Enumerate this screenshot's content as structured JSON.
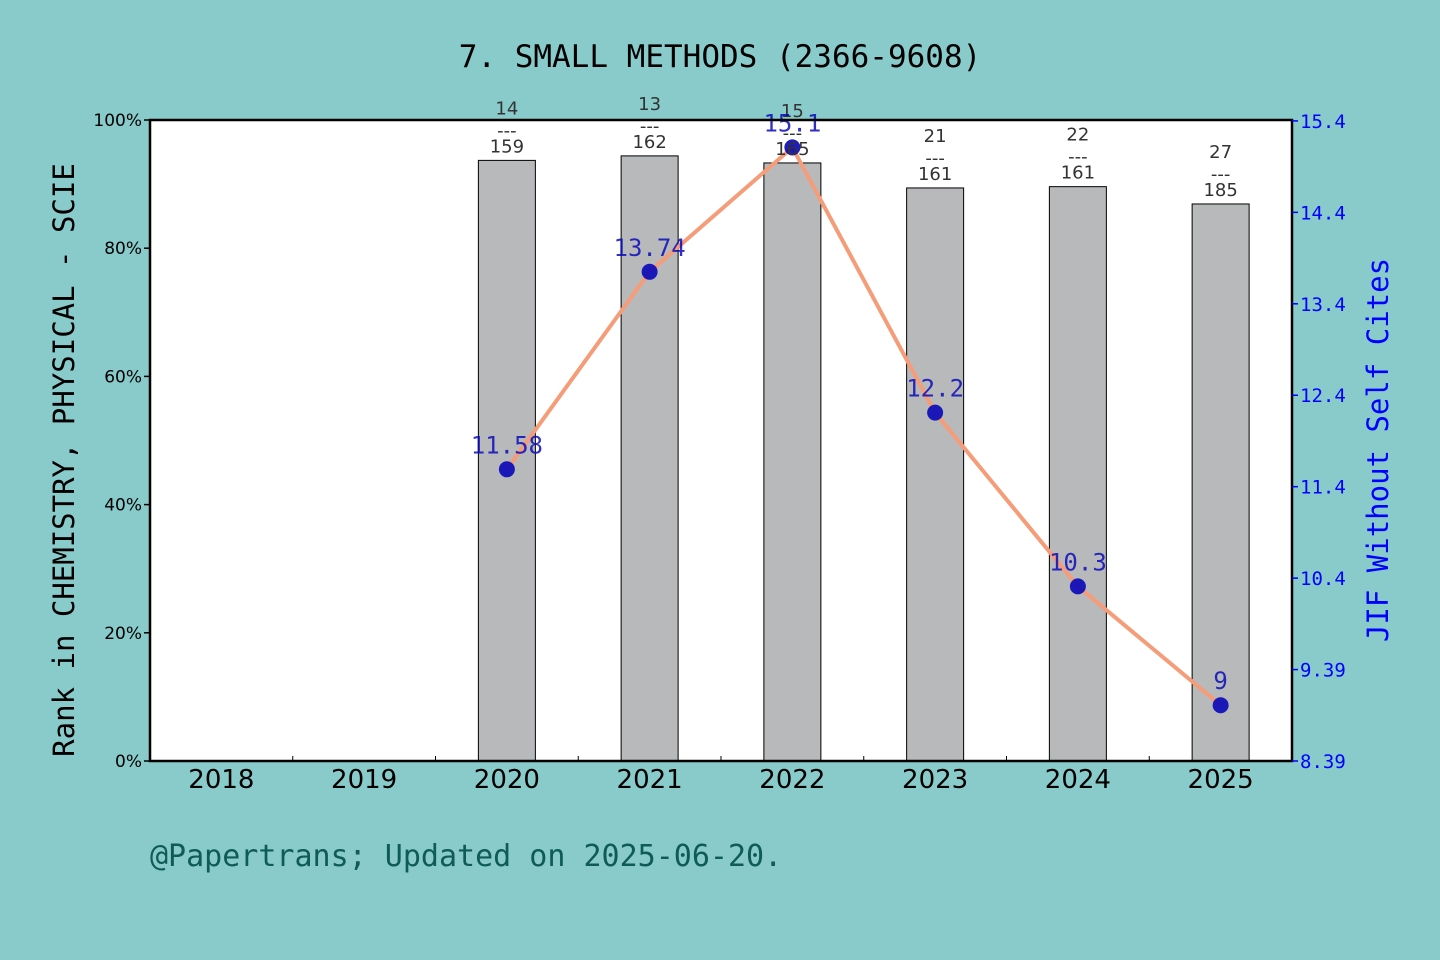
{
  "chart_data": {
    "type": "bar",
    "title": "7. SMALL METHODS (2366-9608)",
    "categories": [
      "2018",
      "2019",
      "2020",
      "2021",
      "2022",
      "2023",
      "2024",
      "2025"
    ],
    "ylabel": "Rank in CHEMISTRY, PHYSICAL - SCIE",
    "y2label": "JIF Without Self Cites",
    "ylim": [
      0,
      100
    ],
    "y2lim": [
      8.39,
      15.4
    ],
    "yticks": [
      "0%",
      "20%",
      "40%",
      "60%",
      "80%",
      "100%"
    ],
    "y2ticks": [
      "8.39",
      "9.39",
      "10.4",
      "11.4",
      "12.4",
      "13.4",
      "14.4",
      "15.4"
    ],
    "bars": [
      {
        "x": "2020",
        "value": 93.7,
        "rank": "14",
        "divider": "---",
        "total": "159"
      },
      {
        "x": "2021",
        "value": 94.4,
        "rank": "13",
        "divider": "---",
        "total": "162"
      },
      {
        "x": "2022",
        "value": 93.3,
        "rank": "15",
        "divider": "---",
        "total": "165"
      },
      {
        "x": "2023",
        "value": 89.4,
        "rank": "21",
        "divider": "---",
        "total": "161"
      },
      {
        "x": "2024",
        "value": 89.6,
        "rank": "22",
        "divider": "---",
        "total": "161"
      },
      {
        "x": "2025",
        "value": 86.9,
        "rank": "27",
        "divider": "---",
        "total": "185"
      }
    ],
    "line": [
      {
        "x": "2020",
        "value": 11.58,
        "label": "11.58"
      },
      {
        "x": "2021",
        "value": 13.74,
        "label": "13.74"
      },
      {
        "x": "2022",
        "value": 15.1,
        "label": "15.1"
      },
      {
        "x": "2023",
        "value": 12.2,
        "label": "12.2"
      },
      {
        "x": "2024",
        "value": 10.3,
        "label": "10.3"
      },
      {
        "x": "2025",
        "value": 9,
        "label": "9"
      }
    ],
    "colors": {
      "background": "#88cbca",
      "plot": "#ffffff",
      "bar": "#b8b9bb",
      "line": "#f59c78",
      "marker": "#0b0bb8",
      "right_axis": "#0000ff",
      "footer": "#0e5b57"
    }
  },
  "footer": "@Papertrans; Updated on 2025-06-20."
}
